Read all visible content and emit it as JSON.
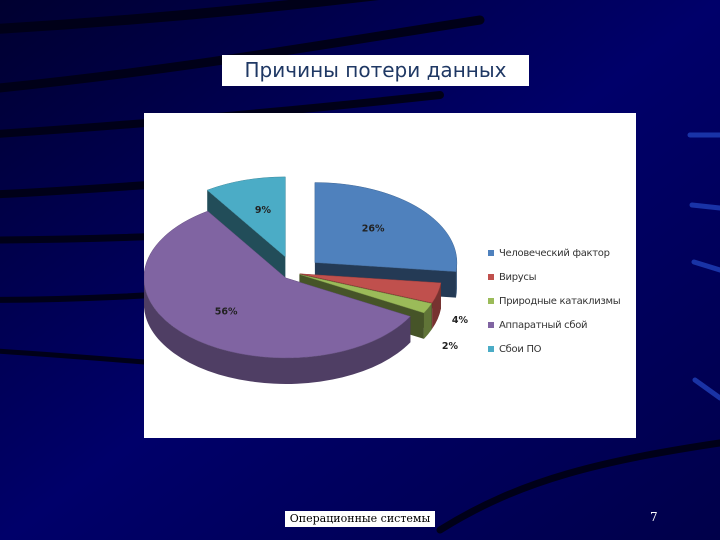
{
  "slide": {
    "title": "Причины потери данных",
    "footer": "Операционные системы",
    "page_number": "7"
  },
  "colors": {
    "background": "#00005a",
    "title_text": "#1f3864"
  },
  "chart_data": {
    "type": "pie",
    "title": "",
    "style": "3d-exploded",
    "legend_placement": "right",
    "categories": [
      "Человеческий фактор",
      "Вирусы",
      "Природные катаклизмы",
      "Аппаратный сбой",
      "Сбои ПО"
    ],
    "values": [
      26,
      4,
      2,
      56,
      9
    ],
    "labels": [
      "26%",
      "4%",
      "2%",
      "56%",
      "9%"
    ],
    "colors": [
      "#4f81bd",
      "#c0504d",
      "#9bbb59",
      "#8064a2",
      "#4bacc6"
    ]
  }
}
